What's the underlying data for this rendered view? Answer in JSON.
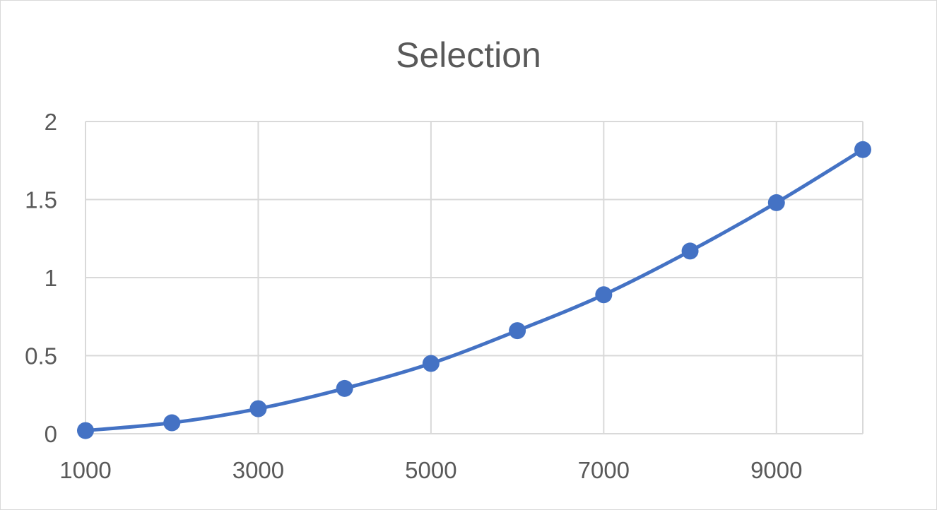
{
  "chart_data": {
    "type": "line",
    "title": "Selection",
    "xlabel": "",
    "ylabel": "",
    "x": [
      1000,
      2000,
      3000,
      4000,
      5000,
      6000,
      7000,
      8000,
      9000,
      10000
    ],
    "series": [
      {
        "values": [
          0.02,
          0.07,
          0.16,
          0.29,
          0.45,
          0.66,
          0.89,
          1.17,
          1.48,
          1.82
        ]
      }
    ],
    "xlim": [
      1000,
      10000
    ],
    "ylim": [
      0,
      2
    ],
    "y_ticks": [
      0,
      0.5,
      1,
      1.5,
      2
    ],
    "y_tick_labels": [
      "0",
      "0.5",
      "1",
      "1.5",
      "2"
    ],
    "x_ticks": [
      1000,
      3000,
      5000,
      7000,
      9000
    ],
    "x_tick_labels": [
      "1000",
      "3000",
      "5000",
      "7000",
      "9000"
    ],
    "grid": true,
    "legend": "none",
    "markers": true,
    "smooth": true,
    "color": "#4472c4"
  }
}
